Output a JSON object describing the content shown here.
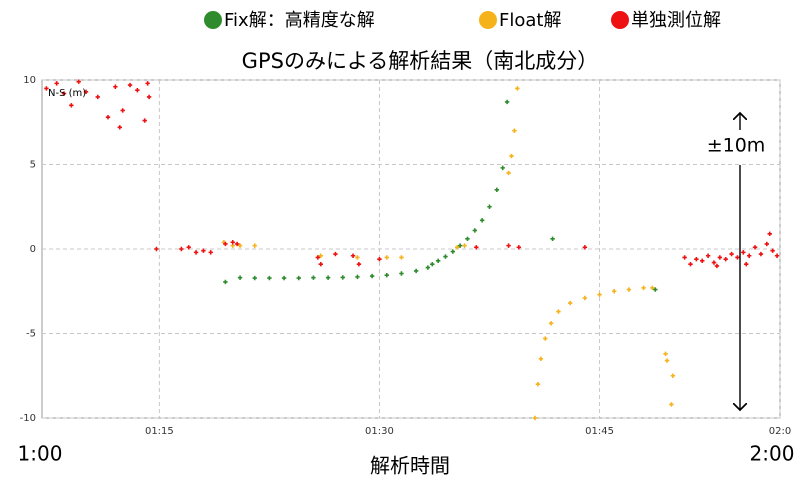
{
  "chart_data": {
    "type": "scatter",
    "title": "GPSのみによる解析結果（南北成分）",
    "axis_label": "N-S (m)",
    "xlabel": "解析時間",
    "annotations": {
      "start": "1:00",
      "end": "2:00",
      "range": "±10m"
    },
    "legend": "top",
    "grid": true,
    "xlim": [
      67,
      117.3
    ],
    "ylim": [
      -10,
      10
    ],
    "xticks": [
      {
        "value": 75,
        "label": "01:15"
      },
      {
        "value": 90,
        "label": "01:30"
      },
      {
        "value": 105,
        "label": "01:45"
      },
      {
        "value": 117.3,
        "label": "02:0"
      }
    ],
    "yticks": [
      -10,
      -5,
      0,
      5,
      10
    ],
    "series": [
      {
        "name": "Fix解：高精度な解",
        "color": "#2e8b2e",
        "x": [
          79.5,
          80.5,
          81.5,
          82.5,
          83.5,
          84.5,
          85.5,
          86.5,
          87.5,
          88.5,
          89.5,
          90.5,
          91.5,
          92.5,
          93.3,
          93.6,
          94,
          94.5,
          95,
          95.5,
          96,
          96.5,
          97,
          97.5,
          98,
          98.4,
          98.7,
          101.8,
          108.8
        ],
        "y": [
          -1.95,
          -1.7,
          -1.72,
          -1.72,
          -1.72,
          -1.72,
          -1.7,
          -1.7,
          -1.68,
          -1.65,
          -1.6,
          -1.55,
          -1.45,
          -1.3,
          -1.1,
          -0.9,
          -0.7,
          -0.45,
          -0.15,
          0.2,
          0.6,
          1.1,
          1.7,
          2.5,
          3.5,
          4.8,
          8.7,
          0.6,
          -2.4
        ]
      },
      {
        "name": "Float解",
        "color": "#f5b21b",
        "x": [
          79.4,
          80,
          80.5,
          81.5,
          86,
          88.5,
          90.5,
          91.5,
          95.3,
          95.8,
          98.8,
          99,
          99.2,
          99.4,
          100.6,
          100.8,
          101,
          101.3,
          101.7,
          102.2,
          103,
          104,
          105,
          106,
          107,
          108,
          108.6,
          109.5,
          109.6,
          110,
          109.9
        ],
        "y": [
          0.4,
          0.2,
          0.2,
          0.2,
          -0.4,
          -0.5,
          -0.5,
          -0.5,
          0.1,
          0.2,
          4.5,
          5.5,
          7,
          9.5,
          -10,
          -8,
          -6.5,
          -5.3,
          -4.4,
          -3.7,
          -3.2,
          -2.9,
          -2.7,
          -2.5,
          -2.4,
          -2.3,
          -2.3,
          -6.2,
          -6.6,
          -7.5,
          -9.2
        ]
      },
      {
        "name": "単独測位解",
        "color": "#ee1111",
        "x": [
          67.3,
          68,
          68.5,
          69,
          69.5,
          70,
          70.8,
          71.5,
          72,
          72.3,
          72.5,
          73,
          73.5,
          74,
          74.2,
          74.3,
          74.8,
          76.5,
          77,
          77.5,
          78,
          78.5,
          79.5,
          80,
          80.3,
          85.8,
          86,
          87,
          88.2,
          88.6,
          90,
          96.6,
          98.8,
          99.5,
          104,
          110.8,
          111.2,
          111.6,
          112,
          112.4,
          112.8,
          113,
          113.2,
          113.6,
          114,
          114.4,
          114.8,
          115,
          115.2,
          115.6,
          116,
          116.4,
          116.6,
          116.8,
          117.1
        ],
        "y": [
          9.5,
          9.8,
          9.2,
          8.5,
          9.9,
          9.3,
          9,
          7.8,
          9.6,
          7.2,
          8.2,
          9.7,
          9.4,
          7.6,
          9.8,
          9,
          0,
          0,
          0.1,
          -0.2,
          -0.1,
          -0.2,
          0.3,
          0.4,
          0.3,
          -0.5,
          -0.9,
          -0.3,
          -0.4,
          -0.9,
          -0.6,
          0.1,
          0.2,
          0.1,
          0.1,
          -0.5,
          -0.9,
          -0.6,
          -0.7,
          -0.4,
          -0.8,
          -1.0,
          -0.5,
          -0.6,
          -0.3,
          -0.5,
          -0.2,
          -0.9,
          -0.4,
          0.1,
          -0.3,
          0.3,
          0.9,
          -0.1,
          -0.4
        ]
      }
    ]
  }
}
